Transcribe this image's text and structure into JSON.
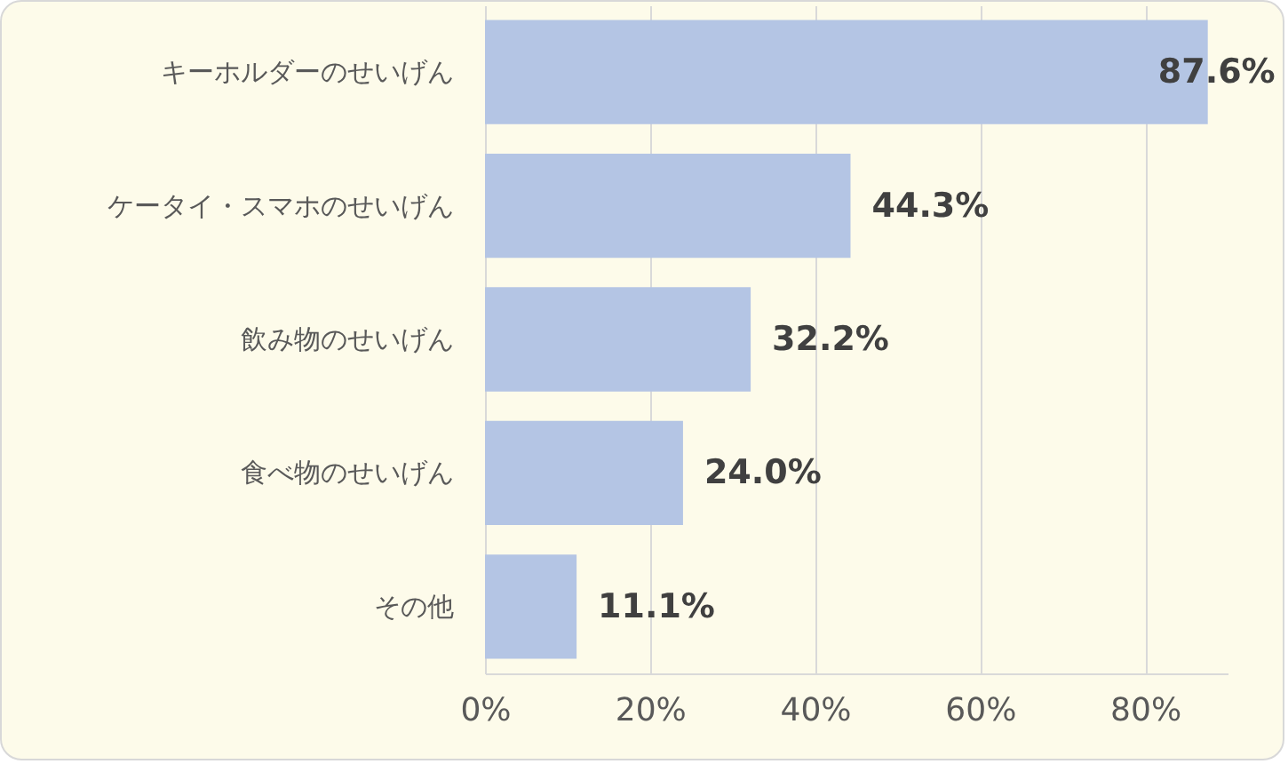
{
  "chart_data": {
    "type": "bar",
    "orientation": "horizontal",
    "categories": [
      "キーホルダーのせいげん",
      "ケータイ・スマホのせいげん",
      "飲み物のせいげん",
      "食べ物のせいげん",
      "その他"
    ],
    "values": [
      87.6,
      44.3,
      32.2,
      24.0,
      11.1
    ],
    "value_labels": [
      "87.6%",
      "44.3%",
      "32.2%",
      "24.0%",
      "11.1%"
    ],
    "color": "#b4c5e4",
    "xlim": [
      0,
      90
    ],
    "xticks": [
      {
        "value": 0,
        "label": "0%"
      },
      {
        "value": 20,
        "label": "20%"
      },
      {
        "value": 40,
        "label": "40%"
      },
      {
        "value": 60,
        "label": "60%"
      },
      {
        "value": 80,
        "label": "80%"
      }
    ],
    "grid": "x"
  }
}
